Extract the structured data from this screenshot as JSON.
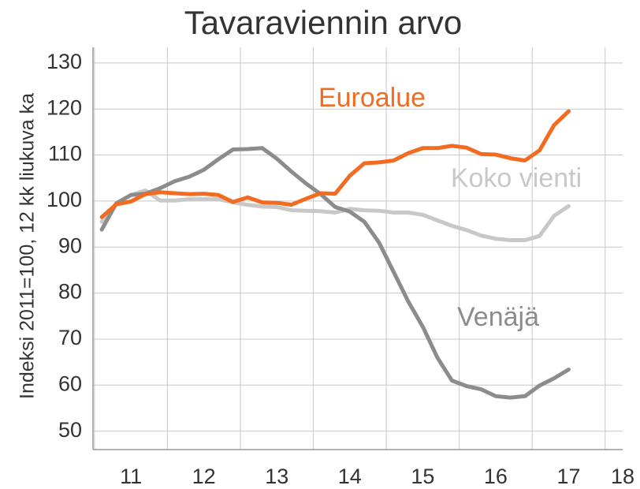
{
  "chart_data": {
    "type": "line",
    "title": "Tavaraviennin arvo",
    "ylabel": "Indeksi 2011=100, 12 kk liukuva ka",
    "x": [
      11.1,
      11.3,
      11.5,
      11.7,
      11.9,
      12.1,
      12.3,
      12.5,
      12.7,
      12.9,
      13.1,
      13.3,
      13.5,
      13.7,
      13.9,
      14.1,
      14.3,
      14.5,
      14.7,
      14.9,
      15.1,
      15.3,
      15.5,
      15.7,
      15.9,
      16.1,
      16.3,
      16.5,
      16.7,
      16.9,
      17.1,
      17.3,
      17.5
    ],
    "series": [
      {
        "name": "Euroalue",
        "color": "#f26b21",
        "values": [
          96.5,
          99.3,
          99.9,
          101.5,
          101.9,
          101.7,
          101.5,
          101.6,
          101.3,
          99.8,
          100.8,
          99.7,
          99.6,
          99.2,
          100.5,
          101.7,
          101.6,
          105.5,
          108.2,
          108.4,
          108.8,
          110.4,
          111.5,
          111.5,
          112.0,
          111.6,
          110.2,
          110.1,
          109.3,
          108.8,
          111.0,
          116.5,
          119.5
        ]
      },
      {
        "name": "Koko vienti",
        "color": "#c8c8c8",
        "values": [
          95.5,
          99.5,
          101.3,
          102.3,
          100.1,
          100.1,
          100.4,
          100.4,
          100.4,
          99.7,
          99.2,
          98.8,
          98.7,
          98.0,
          97.9,
          97.8,
          97.5,
          98.3,
          98.0,
          97.9,
          97.5,
          97.5,
          97.0,
          95.8,
          94.6,
          93.7,
          92.5,
          91.8,
          91.5,
          91.5,
          92.4,
          96.8,
          98.9
        ]
      },
      {
        "name": "Venäjä",
        "color": "#8c8c8c",
        "values": [
          93.8,
          99.5,
          101.3,
          101.6,
          102.8,
          104.3,
          105.3,
          106.8,
          109.1,
          111.2,
          111.3,
          111.5,
          109.2,
          106.4,
          103.8,
          101.5,
          98.7,
          97.7,
          95.5,
          91.0,
          84.6,
          78.2,
          72.7,
          66.0,
          61.0,
          59.8,
          59.1,
          57.6,
          57.3,
          57.6,
          59.9,
          61.5,
          63.4
        ]
      }
    ],
    "xlim": [
      10.98,
      18.24
    ],
    "xticks": [
      {
        "value": 11.5,
        "label": "11"
      },
      {
        "value": 12.5,
        "label": "12"
      },
      {
        "value": 13.5,
        "label": "13"
      },
      {
        "value": 14.5,
        "label": "14"
      },
      {
        "value": 15.5,
        "label": "15"
      },
      {
        "value": 16.5,
        "label": "16"
      },
      {
        "value": 17.5,
        "label": "17"
      },
      {
        "value": 18.5,
        "label": "18"
      }
    ],
    "ylim": [
      46,
      133.4
    ],
    "yticks": [
      50,
      60,
      70,
      80,
      90,
      100,
      110,
      120,
      130
    ],
    "grid": true
  }
}
